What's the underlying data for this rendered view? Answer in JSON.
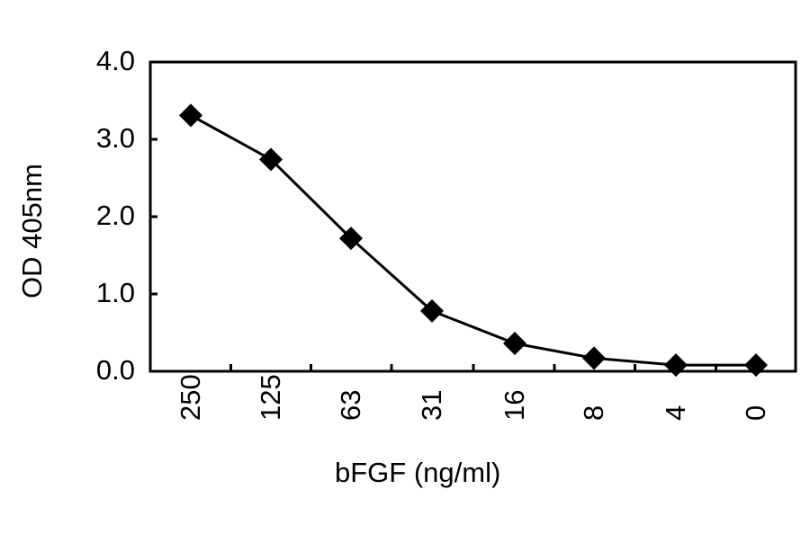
{
  "chart_data": {
    "type": "line",
    "title": "",
    "xlabel": "bFGF (ng/ml)",
    "ylabel": "OD 405nm",
    "categories": [
      "250",
      "125",
      "63",
      "31",
      "16",
      "8",
      "4",
      "0"
    ],
    "series": [
      {
        "name": "bFGF",
        "marker": "diamond",
        "color": "#000000",
        "values": [
          3.31,
          2.74,
          1.72,
          0.78,
          0.36,
          0.17,
          0.08,
          0.08
        ]
      }
    ],
    "ylim": [
      0,
      4.0
    ],
    "yticks": [
      "0.0",
      "1.0",
      "2.0",
      "3.0",
      "4.0"
    ],
    "grid": false,
    "legend": "none"
  }
}
